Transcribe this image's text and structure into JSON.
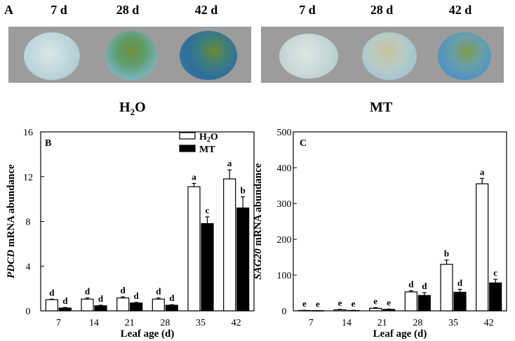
{
  "panel_a": {
    "letter": "A",
    "h2o_group": {
      "days": [
        "7 d",
        "28 d",
        "42 d"
      ],
      "label_main": "H",
      "label_sub": "2",
      "label_tail": "O"
    },
    "mt_group": {
      "days": [
        "7 d",
        "28 d",
        "42 d"
      ],
      "label": "MT"
    }
  },
  "colors": {
    "h2o_bar": "#ffffff",
    "mt_bar": "#000000",
    "photo_bg": "#9c9c9c"
  },
  "chart_data": [
    {
      "type": "bar",
      "panel": "B",
      "ylabel_gene": "PDCD",
      "ylabel_rest": "mRNA  abundance",
      "xlabel": "Leaf age  (d)",
      "categories": [
        "7",
        "14",
        "21",
        "28",
        "35",
        "42"
      ],
      "ylim": [
        0,
        16
      ],
      "yticks": [
        0,
        4,
        8,
        12,
        16
      ],
      "legend": [
        {
          "name_main": "H",
          "name_sub": "2",
          "name_tail": "O"
        },
        {
          "name_main": "MT",
          "name_sub": "",
          "name_tail": ""
        }
      ],
      "series": [
        {
          "name": "H2O",
          "values": [
            1.0,
            1.05,
            1.15,
            1.05,
            11.1,
            11.8
          ],
          "errors": [
            0.05,
            0.1,
            0.1,
            0.1,
            0.3,
            0.8
          ],
          "letters": [
            "d",
            "d",
            "d",
            "d",
            "a",
            "a"
          ]
        },
        {
          "name": "MT",
          "values": [
            0.25,
            0.45,
            0.7,
            0.5,
            7.8,
            9.2
          ],
          "errors": [
            0.05,
            0.05,
            0.05,
            0.05,
            0.6,
            1.0
          ],
          "letters": [
            "d",
            "d",
            "d",
            "d",
            "c",
            "b"
          ]
        }
      ]
    },
    {
      "type": "bar",
      "panel": "C",
      "ylabel_gene": "SAG20",
      "ylabel_rest": "mRNA  abundance",
      "xlabel": "Leaf age  (d)",
      "categories": [
        "7",
        "14",
        "21",
        "28",
        "35",
        "42"
      ],
      "ylim": [
        0,
        500
      ],
      "yticks": [
        0,
        100,
        200,
        300,
        400,
        500
      ],
      "series": [
        {
          "name": "H2O",
          "values": [
            1,
            3,
            7,
            53,
            130,
            355
          ],
          "errors": [
            0.5,
            1,
            2,
            3,
            12,
            15
          ],
          "letters": [
            "e",
            "e",
            "e",
            "d",
            "b",
            "a"
          ]
        },
        {
          "name": "MT",
          "values": [
            0.5,
            1,
            4,
            43,
            52,
            78
          ],
          "errors": [
            0.3,
            0.5,
            1,
            8,
            8,
            10
          ],
          "letters": [
            "e",
            "e",
            "e",
            "d",
            "d",
            "c"
          ]
        }
      ]
    }
  ]
}
